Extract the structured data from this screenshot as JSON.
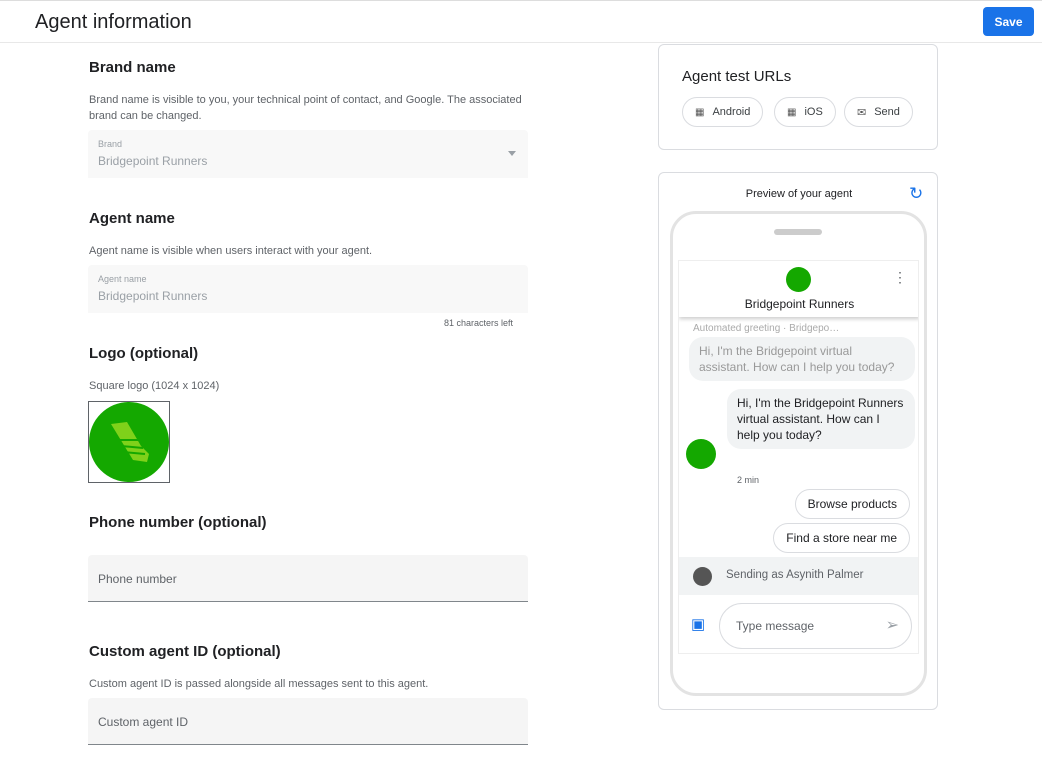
{
  "header": {
    "title": "Agent information",
    "save_label": "Save"
  },
  "brand": {
    "heading": "Brand name",
    "help": "Brand name is visible to you, your technical point of contact, and Google. The associated brand can be changed.",
    "field_label": "Brand",
    "field_value": "Bridgepoint Runners"
  },
  "agent_name": {
    "heading": "Agent name",
    "help": "Agent name is visible when users interact with your agent.",
    "field_label": "Agent name",
    "field_value": "Bridgepoint Runners",
    "counter": "81 characters left"
  },
  "logo": {
    "heading": "Logo (optional)",
    "help": "Square logo (1024 x 1024)"
  },
  "phone": {
    "heading": "Phone number (optional)",
    "placeholder": "Phone number"
  },
  "custom_id": {
    "heading": "Custom agent ID (optional)",
    "help": "Custom agent ID is passed alongside all messages sent to this agent.",
    "placeholder": "Custom agent ID"
  },
  "test_urls": {
    "heading": "Agent test URLs",
    "buttons": [
      {
        "label": "Android",
        "icon": "qr-code-icon"
      },
      {
        "label": "iOS",
        "icon": "qr-code-icon"
      },
      {
        "label": "Send",
        "icon": "mail-icon"
      }
    ]
  },
  "preview": {
    "title": "Preview of your agent",
    "faded_label": "Automated greeting · Bridgepo…",
    "faded_message": "Hi, I'm the Bridgepoint virtual assistant. How can I help you today?",
    "agent_name": "Bridgepoint Runners",
    "message": "Hi, I'm the Bridgepoint Runners virtual assistant. How can I help you today?",
    "time": "2 min",
    "suggestions": [
      "Browse products",
      "Find a store near me"
    ],
    "sending_as": "Sending as Asynith Palmer",
    "input_placeholder": "Type message"
  },
  "colors": {
    "accent": "#1a73e8",
    "logo_green": "#14a800"
  }
}
